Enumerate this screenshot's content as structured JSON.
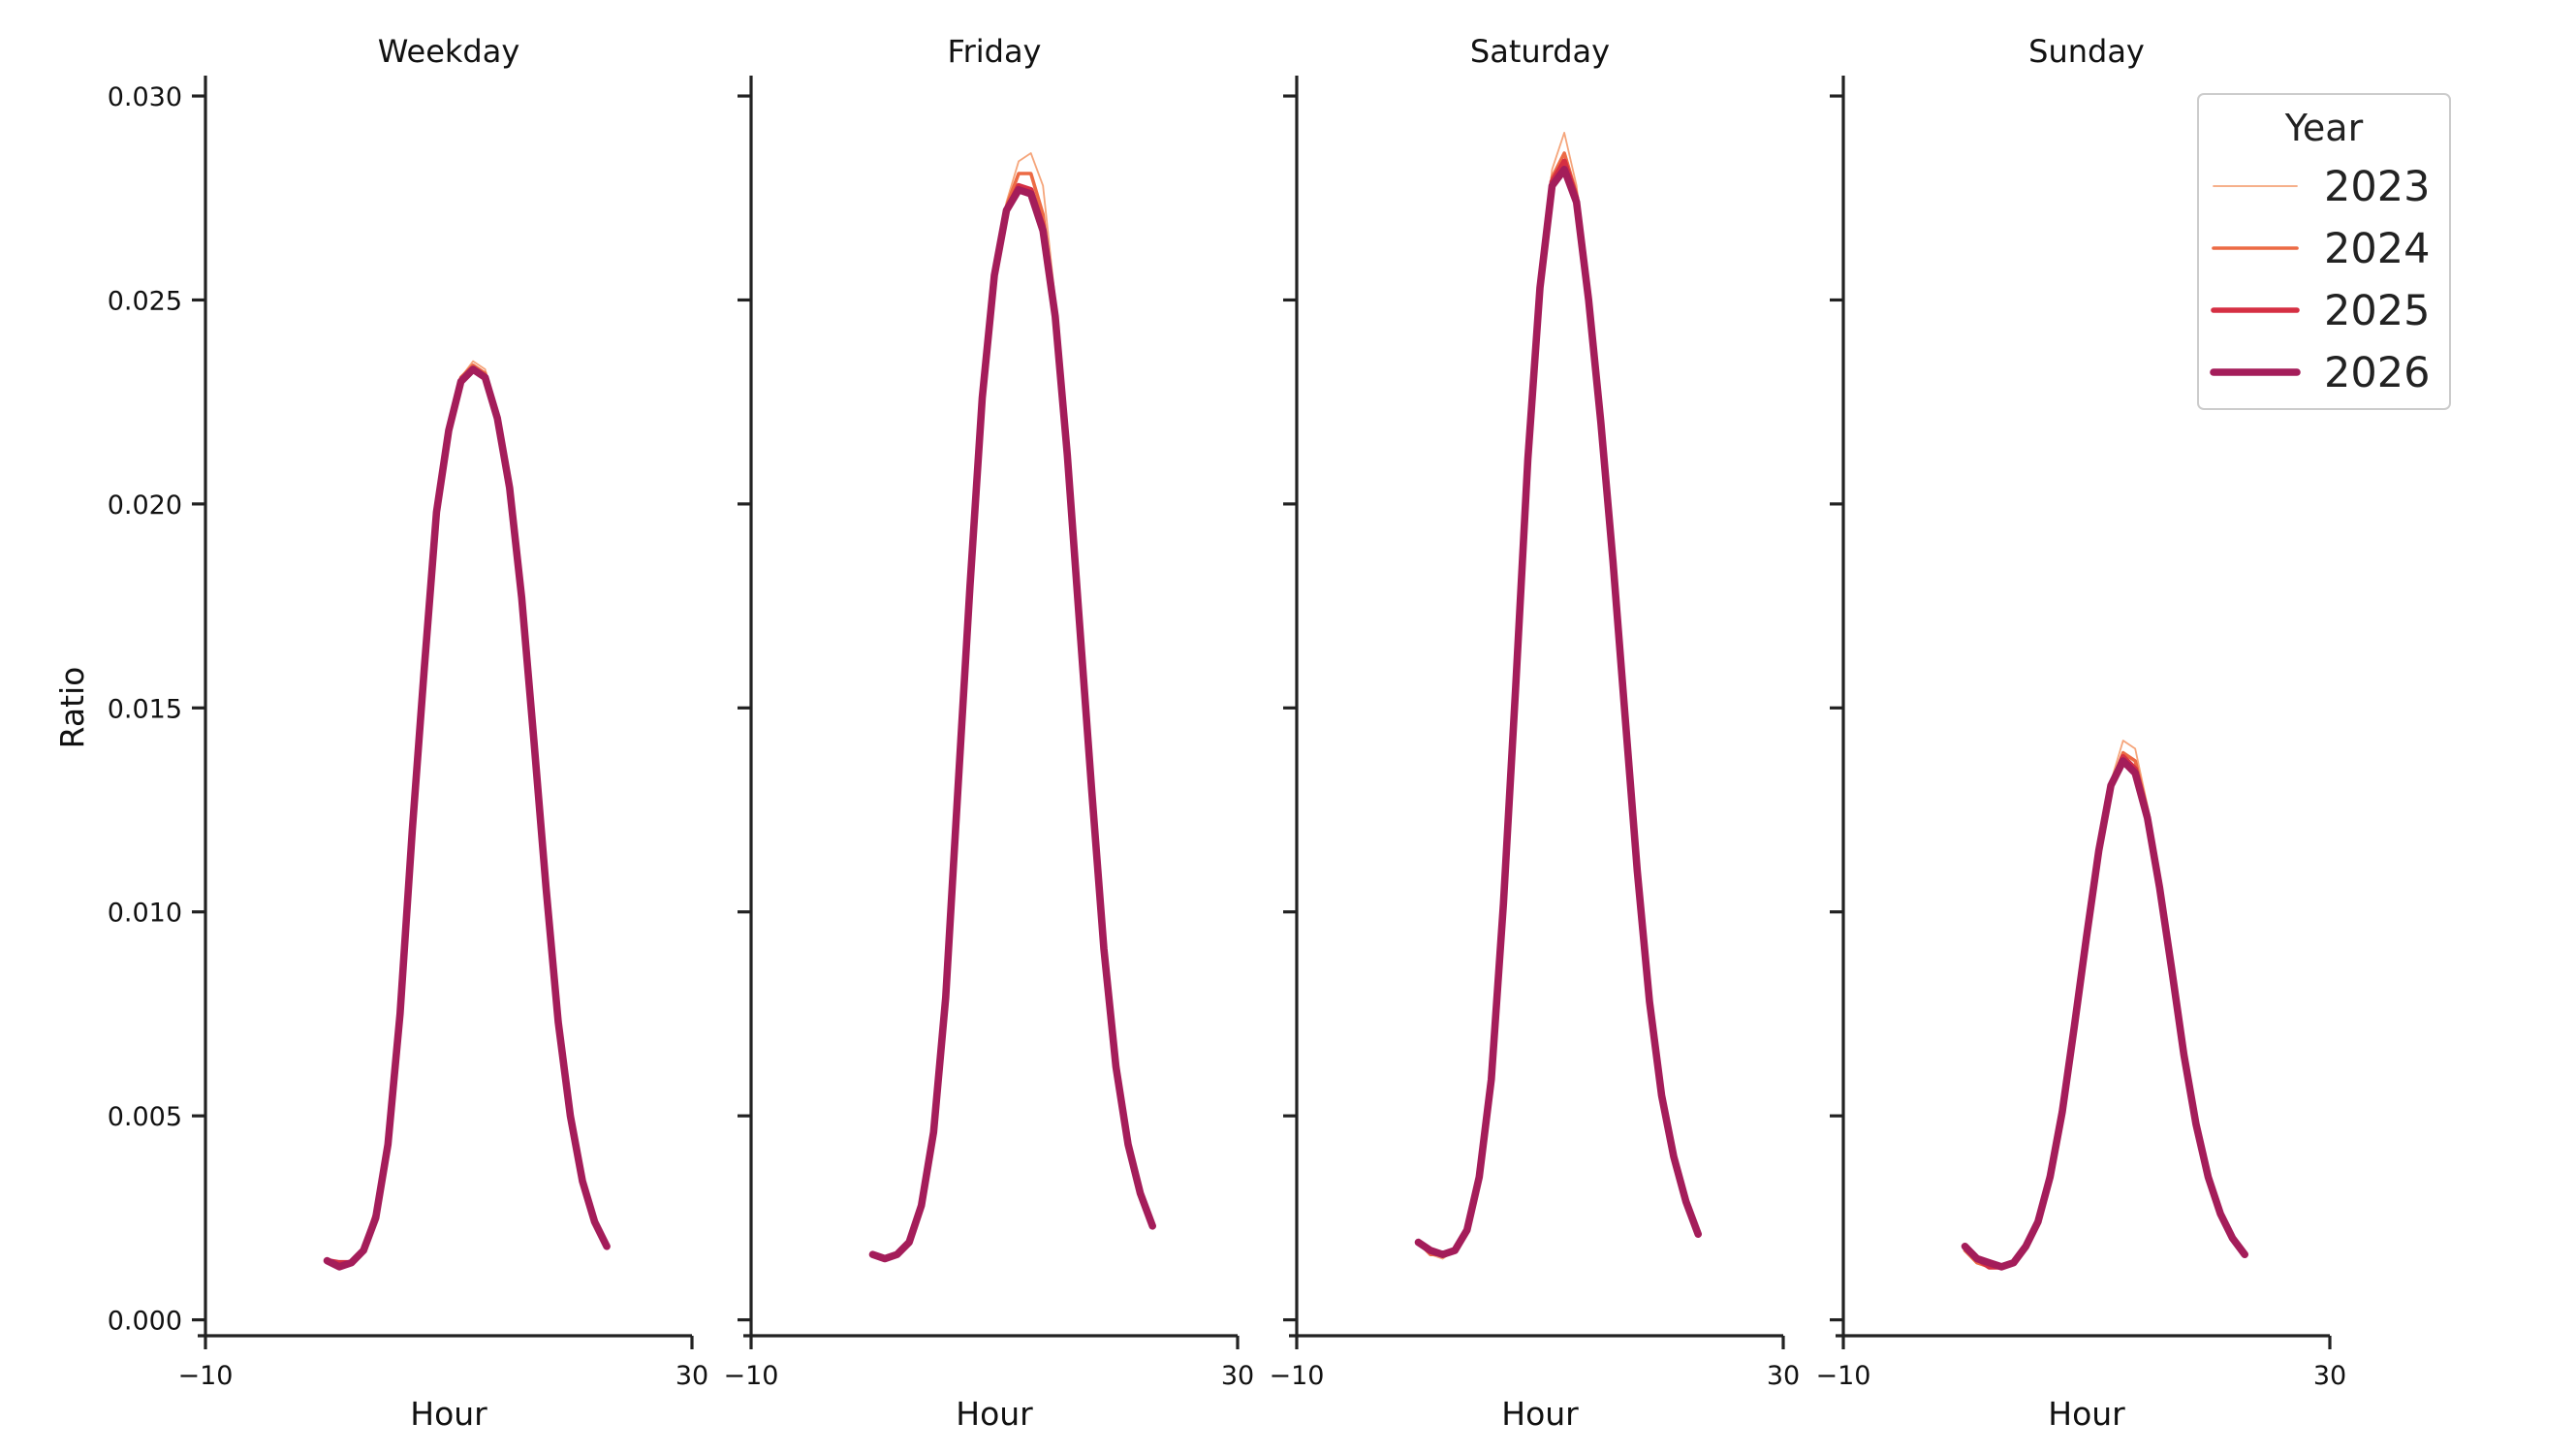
{
  "chart_data": {
    "type": "line",
    "ylabel": "Ratio",
    "xlabel": "Hour",
    "xlim": [
      -10,
      30
    ],
    "ylim": [
      -0.0002,
      0.0305
    ],
    "xticks": [
      -10,
      30
    ],
    "xtick_labels": [
      "−10",
      "30"
    ],
    "yticks": [
      0.0,
      0.005,
      0.01,
      0.015,
      0.02,
      0.025,
      0.03
    ],
    "ytick_labels": [
      "0.000",
      "0.005",
      "0.010",
      "0.015",
      "0.020",
      "0.025",
      "0.030"
    ],
    "grid": false,
    "legend": {
      "title": "Year",
      "placement": "top-right",
      "entries": [
        {
          "label": "2023",
          "color": "#f5a57b",
          "weight": 1
        },
        {
          "label": "2024",
          "color": "#ec6a44",
          "weight": 2
        },
        {
          "label": "2025",
          "color": "#d52f43",
          "weight": 3
        },
        {
          "label": "2026",
          "color": "#a41d5a",
          "weight": 4
        }
      ]
    },
    "x": [
      0,
      1,
      2,
      3,
      4,
      5,
      6,
      7,
      8,
      9,
      10,
      11,
      12,
      13,
      14,
      15,
      16,
      17,
      18,
      19,
      20,
      21,
      22,
      23
    ],
    "panels": [
      {
        "title": "Weekday",
        "series": [
          {
            "name": "2023",
            "values": [
              0.00145,
              0.0014,
              0.0014,
              0.0017,
              0.0026,
              0.0043,
              0.0076,
              0.0122,
              0.0162,
              0.0197,
              0.0219,
              0.0231,
              0.0235,
              0.0233,
              0.0222,
              0.0204,
              0.0178,
              0.0143,
              0.0107,
              0.0073,
              0.005,
              0.0034,
              0.0024,
              0.0018
            ]
          },
          {
            "name": "2024",
            "values": [
              0.00145,
              0.0014,
              0.0014,
              0.0017,
              0.0026,
              0.0043,
              0.0075,
              0.0121,
              0.0161,
              0.0197,
              0.0219,
              0.0231,
              0.0234,
              0.0232,
              0.0222,
              0.0204,
              0.0178,
              0.0143,
              0.0107,
              0.0073,
              0.005,
              0.0034,
              0.0024,
              0.0018
            ]
          },
          {
            "name": "2025",
            "values": [
              0.00145,
              0.0014,
              0.0014,
              0.0017,
              0.0026,
              0.0043,
              0.0075,
              0.0121,
              0.016,
              0.0197,
              0.0218,
              0.023,
              0.0233,
              0.0231,
              0.0221,
              0.0203,
              0.0177,
              0.0142,
              0.0106,
              0.0073,
              0.005,
              0.0034,
              0.0024,
              0.0018
            ]
          },
          {
            "name": "2026",
            "values": [
              0.00145,
              0.0013,
              0.0014,
              0.0017,
              0.0025,
              0.0043,
              0.0075,
              0.012,
              0.016,
              0.0198,
              0.0218,
              0.023,
              0.0233,
              0.0231,
              0.0221,
              0.0204,
              0.0177,
              0.0142,
              0.0106,
              0.0073,
              0.005,
              0.0034,
              0.0024,
              0.0018
            ]
          }
        ]
      },
      {
        "title": "Friday",
        "series": [
          {
            "name": "2023",
            "values": [
              0.0016,
              0.0015,
              0.0016,
              0.0019,
              0.0028,
              0.0046,
              0.0079,
              0.013,
              0.018,
              0.0226,
              0.0256,
              0.0274,
              0.0284,
              0.0286,
              0.0278,
              0.025,
              0.0214,
              0.0172,
              0.013,
              0.0091,
              0.0062,
              0.0043,
              0.0031,
              0.0023
            ]
          },
          {
            "name": "2024",
            "values": [
              0.0016,
              0.0015,
              0.0016,
              0.0019,
              0.0028,
              0.0046,
              0.0079,
              0.013,
              0.018,
              0.0226,
              0.0256,
              0.0273,
              0.0281,
              0.0281,
              0.0271,
              0.0248,
              0.0213,
              0.0171,
              0.013,
              0.0091,
              0.0062,
              0.0043,
              0.0031,
              0.0023
            ]
          },
          {
            "name": "2025",
            "values": [
              0.0016,
              0.0015,
              0.0016,
              0.0019,
              0.0028,
              0.0046,
              0.0079,
              0.013,
              0.018,
              0.0226,
              0.0256,
              0.0272,
              0.0278,
              0.0277,
              0.0268,
              0.0246,
              0.0213,
              0.0171,
              0.013,
              0.0091,
              0.0062,
              0.0043,
              0.0031,
              0.0023
            ]
          },
          {
            "name": "2026",
            "values": [
              0.0016,
              0.0015,
              0.0016,
              0.0019,
              0.0028,
              0.0046,
              0.0079,
              0.013,
              0.018,
              0.0226,
              0.0256,
              0.0272,
              0.0277,
              0.0276,
              0.0267,
              0.0246,
              0.0212,
              0.0171,
              0.013,
              0.0091,
              0.0062,
              0.0043,
              0.0031,
              0.0023
            ]
          }
        ]
      },
      {
        "title": "Saturday",
        "series": [
          {
            "name": "2023",
            "values": [
              0.0019,
              0.0016,
              0.0015,
              0.0017,
              0.0022,
              0.0035,
              0.0059,
              0.0103,
              0.0155,
              0.0212,
              0.0254,
              0.0282,
              0.0291,
              0.0278,
              0.0252,
              0.0221,
              0.0186,
              0.0148,
              0.011,
              0.0078,
              0.0055,
              0.004,
              0.0029,
              0.0021
            ]
          },
          {
            "name": "2024",
            "values": [
              0.0019,
              0.0016,
              0.0016,
              0.0017,
              0.0022,
              0.0035,
              0.0059,
              0.0102,
              0.0155,
              0.0212,
              0.0254,
              0.028,
              0.0286,
              0.0276,
              0.0251,
              0.022,
              0.0186,
              0.0148,
              0.011,
              0.0078,
              0.0055,
              0.004,
              0.0029,
              0.0021
            ]
          },
          {
            "name": "2025",
            "values": [
              0.0019,
              0.0017,
              0.0016,
              0.0017,
              0.0022,
              0.0035,
              0.0059,
              0.0102,
              0.0155,
              0.0211,
              0.0253,
              0.0279,
              0.0284,
              0.0275,
              0.025,
              0.022,
              0.0186,
              0.0148,
              0.011,
              0.0078,
              0.0055,
              0.004,
              0.0029,
              0.0021
            ]
          },
          {
            "name": "2026",
            "values": [
              0.0019,
              0.0017,
              0.0016,
              0.0017,
              0.0022,
              0.0035,
              0.0059,
              0.0102,
              0.0155,
              0.0211,
              0.0253,
              0.0278,
              0.0282,
              0.0274,
              0.025,
              0.022,
              0.0186,
              0.0148,
              0.011,
              0.0078,
              0.0055,
              0.004,
              0.0029,
              0.0021
            ]
          }
        ]
      },
      {
        "title": "Sunday",
        "series": [
          {
            "name": "2023",
            "values": [
              0.0017,
              0.0014,
              0.0013,
              0.0013,
              0.0014,
              0.0018,
              0.0024,
              0.0035,
              0.0051,
              0.0072,
              0.0094,
              0.0115,
              0.0132,
              0.0142,
              0.014,
              0.0126,
              0.0108,
              0.0087,
              0.0065,
              0.0048,
              0.0035,
              0.0026,
              0.002,
              0.0016
            ]
          },
          {
            "name": "2024",
            "values": [
              0.0017,
              0.0014,
              0.0013,
              0.0013,
              0.0014,
              0.0018,
              0.0024,
              0.0035,
              0.0051,
              0.0072,
              0.0094,
              0.0115,
              0.0131,
              0.0139,
              0.0137,
              0.0125,
              0.0107,
              0.0086,
              0.0065,
              0.0048,
              0.0035,
              0.0026,
              0.002,
              0.0016
            ]
          },
          {
            "name": "2025",
            "values": [
              0.0018,
              0.0015,
              0.0013,
              0.0013,
              0.0014,
              0.0018,
              0.0024,
              0.0035,
              0.0051,
              0.0072,
              0.0094,
              0.0115,
              0.0131,
              0.0138,
              0.0135,
              0.0124,
              0.0106,
              0.0086,
              0.0065,
              0.0048,
              0.0035,
              0.0026,
              0.002,
              0.0016
            ]
          },
          {
            "name": "2026",
            "values": [
              0.0018,
              0.0015,
              0.0014,
              0.0013,
              0.0014,
              0.0018,
              0.0024,
              0.0035,
              0.0051,
              0.0072,
              0.0094,
              0.0115,
              0.0131,
              0.0137,
              0.0134,
              0.0123,
              0.0106,
              0.0086,
              0.0065,
              0.0048,
              0.0035,
              0.0026,
              0.002,
              0.0016
            ]
          }
        ]
      }
    ]
  }
}
